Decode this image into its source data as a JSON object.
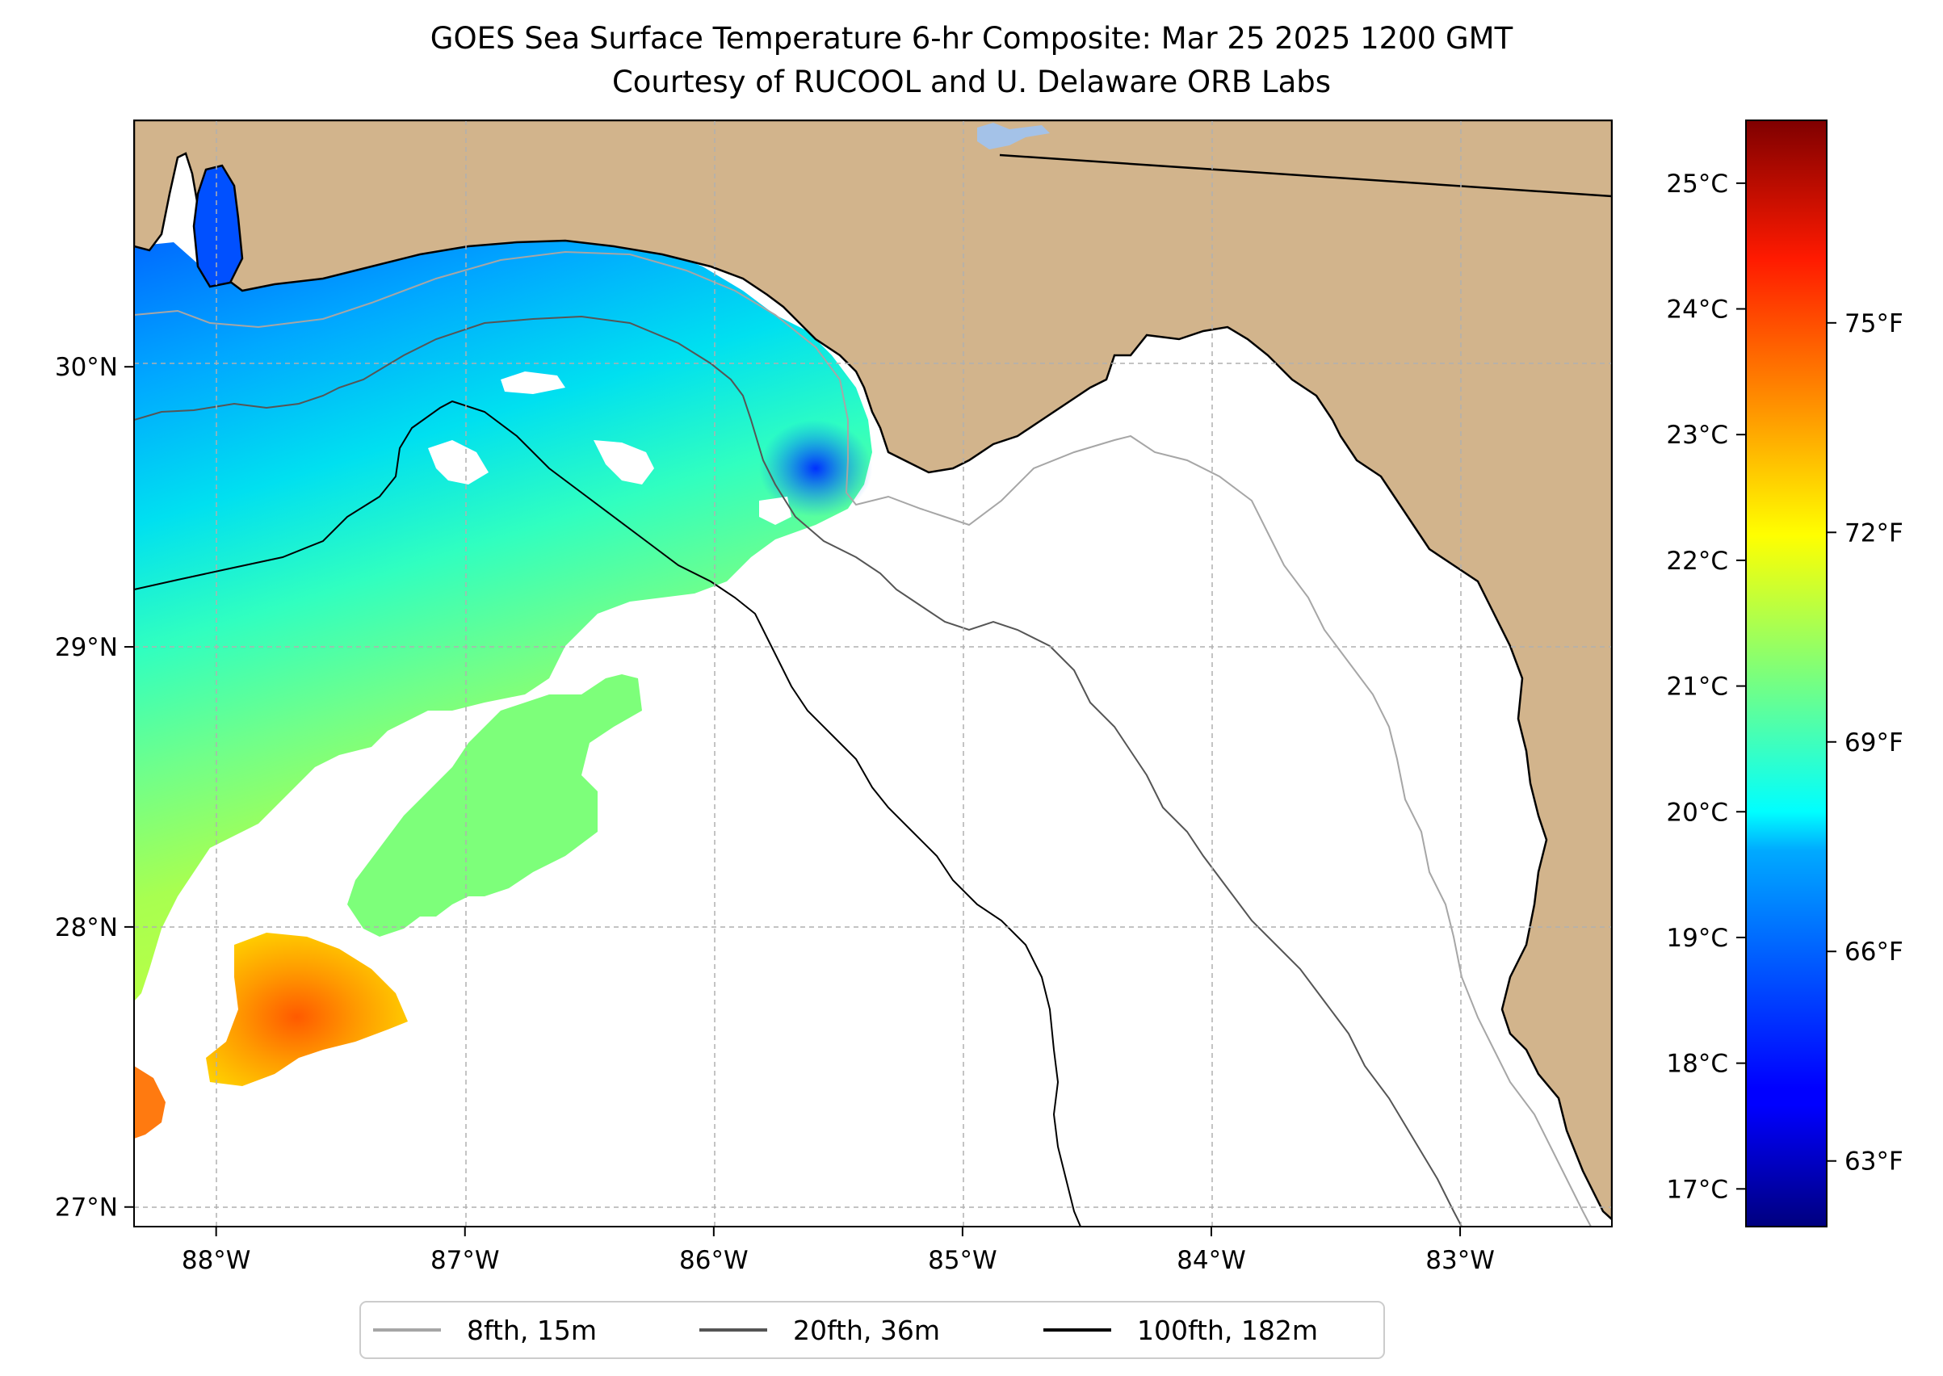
{
  "title_line1": "GOES Sea Surface Temperature 6-hr Composite: Mar 25 2025 1200 GMT",
  "title_line2": "Courtesy of RUCOOL and U. Delaware ORB Labs",
  "map": {
    "lon_range": [
      -88.33,
      -82.39
    ],
    "lat_range": [
      26.93,
      30.88
    ],
    "lon_ticks": [
      {
        "value": -88,
        "label": "88°W"
      },
      {
        "value": -87,
        "label": "87°W"
      },
      {
        "value": -86,
        "label": "86°W"
      },
      {
        "value": -85,
        "label": "85°W"
      },
      {
        "value": -84,
        "label": "84°W"
      },
      {
        "value": -83,
        "label": "83°W"
      }
    ],
    "lat_ticks": [
      {
        "value": 27,
        "label": "27°N"
      },
      {
        "value": 28,
        "label": "28°N"
      },
      {
        "value": 29,
        "label": "29°N"
      },
      {
        "value": 30,
        "label": "30°N"
      }
    ],
    "grid": true,
    "land_color": "#d2b48c"
  },
  "colorbar": {
    "colormap": "jet",
    "range_c": [
      16.7,
      25.5
    ],
    "celsius_ticks": [
      {
        "value": 17,
        "label": "17°C"
      },
      {
        "value": 18,
        "label": "18°C"
      },
      {
        "value": 19,
        "label": "19°C"
      },
      {
        "value": 20,
        "label": "20°C"
      },
      {
        "value": 21,
        "label": "21°C"
      },
      {
        "value": 22,
        "label": "22°C"
      },
      {
        "value": 23,
        "label": "23°C"
      },
      {
        "value": 24,
        "label": "24°C"
      },
      {
        "value": 25,
        "label": "25°C"
      }
    ],
    "fahrenheit_ticks": [
      {
        "value": 63,
        "label": "63°F"
      },
      {
        "value": 66,
        "label": "66°F"
      },
      {
        "value": 69,
        "label": "69°F"
      },
      {
        "value": 72,
        "label": "72°F"
      },
      {
        "value": 75,
        "label": "75°F"
      }
    ]
  },
  "legend": {
    "placement": "bottom-center",
    "entries": [
      {
        "label": "8fth, 15m",
        "color": "#a6a6a6"
      },
      {
        "label": "20fth, 36m",
        "color": "#555555"
      },
      {
        "label": "100fth, 182m",
        "color": "#000000"
      }
    ]
  }
}
